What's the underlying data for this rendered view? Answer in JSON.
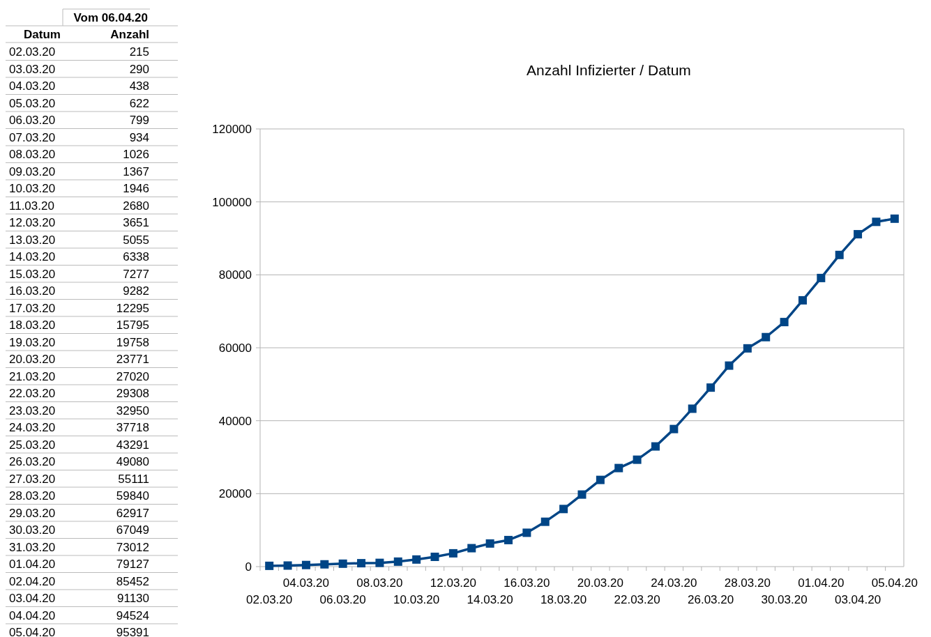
{
  "chart_data": [
    {
      "type": "other",
      "title": "Vom 06.04.20",
      "xlabel": "Datum",
      "ylabel": "Anzahl",
      "data_labels": true,
      "categories": [
        "02.03.20",
        "03.03.20",
        "04.03.20",
        "05.03.20",
        "06.03.20",
        "07.03.20",
        "08.03.20",
        "09.03.20",
        "10.03.20",
        "11.03.20",
        "12.03.20",
        "13.03.20",
        "14.03.20",
        "15.03.20",
        "16.03.20",
        "17.03.20",
        "18.03.20",
        "19.03.20",
        "20.03.20",
        "21.03.20",
        "22.03.20",
        "23.03.20",
        "24.03.20",
        "25.03.20",
        "26.03.20",
        "27.03.20",
        "28.03.20",
        "29.03.20",
        "30.03.20",
        "31.03.20",
        "01.04.20",
        "02.04.20",
        "03.04.20",
        "04.04.20",
        "05.04.20"
      ],
      "values": [
        215,
        290,
        438,
        622,
        799,
        934,
        1026,
        1367,
        1946,
        2680,
        3651,
        5055,
        6338,
        7277,
        9282,
        12295,
        15795,
        19758,
        23771,
        27020,
        29308,
        32950,
        37718,
        43291,
        49080,
        55111,
        59840,
        62917,
        67049,
        73012,
        79127,
        85452,
        91130,
        94524,
        95391
      ]
    },
    {
      "type": "line",
      "title": "Anzahl Infizierter / Datum",
      "categories": [
        "02.03.20",
        null,
        "04.03.20",
        null,
        "06.03.20",
        null,
        "08.03.20",
        null,
        "10.03.20",
        null,
        "12.03.20",
        null,
        "14.03.20",
        null,
        "16.03.20",
        null,
        "18.03.20",
        null,
        "20.03.20",
        null,
        "22.03.20",
        null,
        "24.03.20",
        null,
        "26.03.20",
        null,
        "28.03.20",
        null,
        "30.03.20",
        null,
        "01.04.20",
        null,
        "03.04.20",
        null,
        "05.04.20"
      ],
      "series": [
        {
          "color": "#004586",
          "values": [
            215,
            290,
            438,
            622,
            799,
            934,
            1026,
            1367,
            1946,
            2680,
            3651,
            5055,
            6338,
            7277,
            9282,
            12295,
            15795,
            19758,
            23771,
            27020,
            29308,
            32950,
            37718,
            43291,
            49080,
            55111,
            59840,
            62917,
            67049,
            73012,
            79127,
            85452,
            91130,
            94524,
            95391
          ]
        }
      ],
      "ylim": [
        0,
        120000
      ],
      "yticks": [
        0,
        20000,
        40000,
        60000,
        80000,
        100000,
        120000
      ],
      "grid": "y",
      "marker": "square",
      "line_style": "solid"
    }
  ]
}
